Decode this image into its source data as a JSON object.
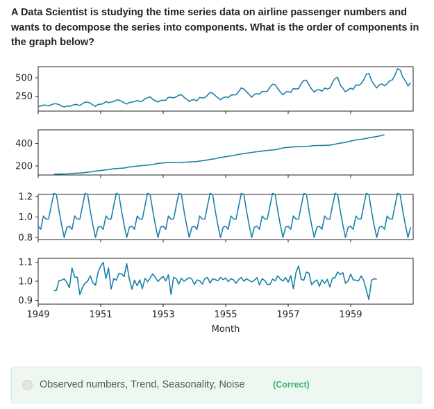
{
  "question": {
    "text": "A Data Scientist is studying the time series data on airline passenger numbers and wants to decompose the series into components. What is the order of components in the graph below?"
  },
  "answer": {
    "option_text": "Observed numbers, Trend, Seasonality, Noise",
    "status": "(Correct)"
  },
  "colors": {
    "line": "#1a80a8",
    "correct": "#3cb36c",
    "answer_bg": "#eef8f1"
  },
  "chart_data": [
    {
      "type": "line",
      "title": "",
      "xlabel": "",
      "ylabel": "",
      "ylim": [
        50,
        650
      ],
      "yticks": [
        250,
        500
      ],
      "series": [
        {
          "values": [
            112,
            118,
            132,
            129,
            121,
            135,
            148,
            148,
            136,
            119,
            104,
            118,
            115,
            126,
            141,
            135,
            125,
            149,
            170,
            170,
            158,
            133,
            114,
            140,
            145,
            150,
            178,
            163,
            172,
            178,
            199,
            199,
            184,
            162,
            146,
            166,
            171,
            180,
            193,
            181,
            183,
            218,
            230,
            242,
            209,
            191,
            172,
            194,
            196,
            196,
            236,
            235,
            229,
            243,
            264,
            272,
            237,
            211,
            180,
            201,
            204,
            188,
            235,
            227,
            234,
            264,
            302,
            293,
            259,
            229,
            203,
            229,
            242,
            233,
            267,
            269,
            270,
            315,
            364,
            347,
            312,
            274,
            237,
            278,
            284,
            277,
            317,
            313,
            318,
            374,
            413,
            405,
            355,
            306,
            271,
            306,
            315,
            301,
            356,
            348,
            355,
            422,
            465,
            467,
            404,
            347,
            305,
            336,
            340,
            318,
            362,
            348,
            363,
            435,
            491,
            505,
            404,
            359,
            310,
            337,
            360,
            342,
            406,
            396,
            420,
            472,
            548,
            559,
            463,
            407,
            362,
            405,
            417,
            391,
            419,
            461,
            472,
            535,
            622,
            606,
            508,
            461,
            390,
            432
          ]
        }
      ]
    },
    {
      "type": "line",
      "title": "",
      "xlabel": "",
      "ylabel": "",
      "ylim": [
        120,
        520
      ],
      "yticks": [
        200,
        400
      ],
      "series": [
        {
          "values": [
            126.8,
            127.2,
            127.9,
            128.6,
            129.0,
            129.8,
            131.3,
            133.1,
            134.9,
            136.4,
            137.4,
            138.8,
            141.0,
            143.8,
            147.3,
            151.0,
            154.5,
            156.8,
            159.2,
            162.3,
            165.1,
            168.2,
            171.8,
            174.6,
            176.8,
            178.6,
            180.3,
            182.4,
            186.0,
            190.0,
            194.0,
            196.8,
            198.3,
            201.0,
            203.1,
            205.3,
            207.5,
            210.0,
            213.4,
            217.8,
            222.6,
            225.4,
            227.3,
            228.9,
            229.5,
            229.5,
            230.2,
            230.7,
            230.7,
            231.5,
            233.0,
            234.0,
            235.1,
            236.3,
            237.8,
            240.0,
            243.9,
            246.7,
            249.7,
            253.3,
            257.1,
            260.9,
            264.6,
            270.0,
            274.9,
            278.1,
            281.6,
            285.7,
            289.6,
            293.6,
            297.6,
            301.9,
            306.5,
            309.8,
            313.0,
            316.6,
            320.1,
            323.6,
            326.4,
            328.9,
            331.6,
            334.8,
            337.1,
            339.8,
            342.4,
            345.3,
            349.0,
            354.5,
            359.5,
            363.1,
            365.2,
            367.4,
            368.6,
            369.7,
            370.8,
            370.9,
            371.3,
            372.6,
            374.8,
            377.9,
            380.4,
            381.4,
            381.6,
            382.0,
            382.3,
            383.1,
            385.5,
            389.1,
            393.2,
            398.1,
            402.4,
            405.8,
            409.8,
            415.0,
            420.1,
            425.2,
            430.3,
            433.8,
            436.7,
            439.8,
            444.3,
            450.0,
            453.5,
            457.2,
            460.8,
            465.6,
            471.7,
            475.7
          ]
        }
      ]
    },
    {
      "type": "line",
      "title": "",
      "xlabel": "",
      "ylabel": "",
      "ylim": [
        0.78,
        1.22
      ],
      "yticks": [
        0.8,
        1.0,
        1.2
      ],
      "series": [
        {
          "values": [
            0.91,
            0.88,
            1.01,
            0.98,
            0.98,
            1.11,
            1.23,
            1.22,
            1.06,
            0.92,
            0.8,
            0.9,
            0.91,
            0.88,
            1.01,
            0.98,
            0.98,
            1.11,
            1.23,
            1.22,
            1.06,
            0.92,
            0.8,
            0.9,
            0.91,
            0.88,
            1.01,
            0.98,
            0.98,
            1.11,
            1.23,
            1.22,
            1.06,
            0.92,
            0.8,
            0.9,
            0.91,
            0.88,
            1.01,
            0.98,
            0.98,
            1.11,
            1.23,
            1.22,
            1.06,
            0.92,
            0.8,
            0.9,
            0.91,
            0.88,
            1.01,
            0.98,
            0.98,
            1.11,
            1.23,
            1.22,
            1.06,
            0.92,
            0.8,
            0.9,
            0.91,
            0.88,
            1.01,
            0.98,
            0.98,
            1.11,
            1.23,
            1.22,
            1.06,
            0.92,
            0.8,
            0.9,
            0.91,
            0.88,
            1.01,
            0.98,
            0.98,
            1.11,
            1.23,
            1.22,
            1.06,
            0.92,
            0.8,
            0.9,
            0.91,
            0.88,
            1.01,
            0.98,
            0.98,
            1.11,
            1.23,
            1.22,
            1.06,
            0.92,
            0.8,
            0.9,
            0.91,
            0.88,
            1.01,
            0.98,
            0.98,
            1.11,
            1.23,
            1.22,
            1.06,
            0.92,
            0.8,
            0.9,
            0.91,
            0.88,
            1.01,
            0.98,
            0.98,
            1.11,
            1.23,
            1.22,
            1.06,
            0.92,
            0.8,
            0.9,
            0.91,
            0.88,
            1.01,
            0.98,
            0.98,
            1.11,
            1.23,
            1.22,
            1.06,
            0.92,
            0.8,
            0.9,
            0.91,
            0.88,
            1.01,
            0.98,
            0.98,
            1.11,
            1.23,
            1.22,
            1.06,
            0.92,
            0.8,
            0.9
          ]
        }
      ]
    },
    {
      "type": "line",
      "title": "",
      "xlabel": "Month",
      "ylabel": "",
      "xlim": [
        1949,
        1961
      ],
      "xticks": [
        1949,
        1951,
        1953,
        1955,
        1957,
        1959
      ],
      "ylim": [
        0.88,
        1.12
      ],
      "yticks": [
        0.9,
        1.0,
        1.1
      ],
      "series": [
        {
          "values": [
            0.951,
            0.952,
            1.004,
            1.006,
            1.013,
            0.993,
            0.966,
            1.069,
            1.022,
            1.021,
            0.929,
            0.968,
            0.99,
            1.0,
            1.028,
            0.992,
            0.979,
            1.048,
            1.079,
            1.099,
            1.014,
            1.07,
            0.959,
            1.014,
            1.005,
            1.041,
            1.039,
            1.024,
            1.092,
            1.012,
            0.958,
            1.006,
            0.976,
            1.007,
            0.961,
            1.015,
            0.997,
            1.016,
            1.039,
            1.019,
            0.999,
            1.014,
            1.025,
            1.002,
            1.034,
            0.93,
            1.02,
            1.014,
            0.985,
            1.016,
            1.0,
            1.01,
            1.019,
            1.011,
            0.983,
            1.007,
            1.003,
            0.985,
            1.014,
            1.02,
            0.99,
            1.013,
            1.008,
            1.003,
            1.02,
            1.008,
            1.017,
            0.998,
            1.013,
            1.007,
            0.989,
            1.009,
            1.02,
            1.0,
            1.013,
            1.004,
            0.997,
            1.005,
            1.019,
            0.98,
            1.013,
            1.003,
            0.983,
            0.983,
            1.012,
            1.002,
            1.028,
            1.011,
            1.001,
            1.019,
            0.995,
            1.029,
            0.961,
            1.047,
            1.08,
            1.01,
            1.005,
            1.048,
            1.042,
            0.982,
            0.997,
            1.007,
            0.974,
            1.008,
            0.989,
            1.01,
            0.97,
            1.017,
            1.018,
            1.049,
            1.035,
            1.045,
            0.989,
            1.002,
            1.037,
            1.007,
            1.006,
            1.001,
            1.028,
            1.004,
            0.955,
            0.904,
            1.005,
            1.014,
            1.01
          ]
        }
      ]
    }
  ]
}
